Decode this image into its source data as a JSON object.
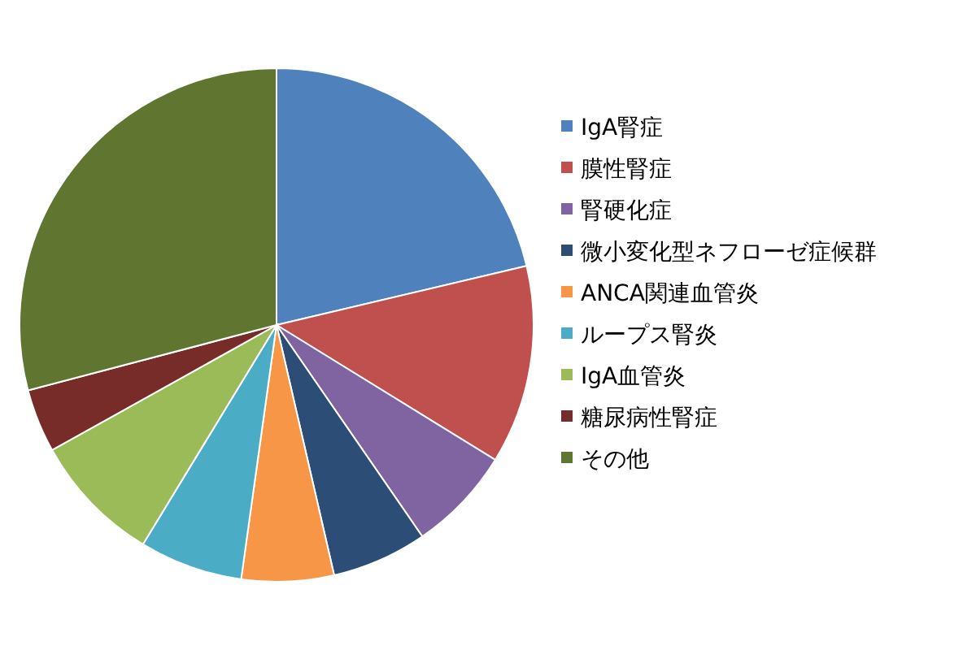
{
  "chart_data": {
    "type": "pie",
    "categories": [
      "IgA腎症",
      "膜性腎症",
      "腎硬化症",
      "微小変化型ネフローゼ症候群",
      "ANCA関連血管炎",
      "ループス腎炎",
      "IgA血管炎",
      "糖尿病性腎症",
      "その他"
    ],
    "values": [
      21.3,
      12.5,
      6.6,
      6.0,
      5.8,
      6.5,
      8.2,
      4.0,
      29.1
    ],
    "colors": [
      "#4f81bd",
      "#c0504d",
      "#8064a2",
      "#2c4d75",
      "#f79646",
      "#4bacc6",
      "#9bbb59",
      "#772c2a",
      "#5f7530"
    ],
    "legend": "right"
  }
}
